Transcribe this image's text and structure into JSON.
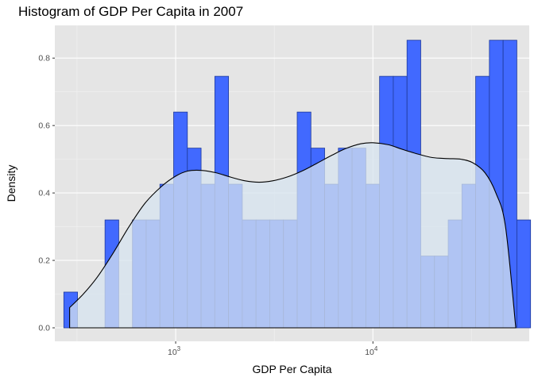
{
  "chart_data": {
    "type": "histogram",
    "title": "Histogram of GDP Per Capita in 2007",
    "xlabel": "GDP Per Capita",
    "ylabel": "Density",
    "x_scale": "log10",
    "xlim": [
      244,
      62000
    ],
    "ylim": [
      -0.04,
      0.897
    ],
    "x_ticks": [
      {
        "value": 1000,
        "base": "10",
        "exp": "3"
      },
      {
        "value": 10000,
        "base": "10",
        "exp": "4"
      }
    ],
    "y_ticks": [
      {
        "value": 0.0,
        "label": "0.0"
      },
      {
        "value": 0.2,
        "label": "0.2"
      },
      {
        "value": 0.4,
        "label": "0.4"
      },
      {
        "value": 0.6,
        "label": "0.6"
      },
      {
        "value": 0.8,
        "label": "0.8"
      }
    ],
    "grid": true,
    "bin_start": 271,
    "bin_ratio": 1.1738,
    "density": [
      0.106,
      0.0,
      0.0,
      0.32,
      0.0,
      0.32,
      0.32,
      0.426,
      0.64,
      0.533,
      0.426,
      0.746,
      0.426,
      0.32,
      0.32,
      0.32,
      0.32,
      0.64,
      0.533,
      0.426,
      0.533,
      0.533,
      0.426,
      0.746,
      0.746,
      0.853,
      0.213,
      0.213,
      0.32,
      0.426,
      0.746,
      0.853,
      0.853,
      0.32
    ],
    "kde": {
      "x": [
        290,
        340,
        400,
        480,
        580,
        700,
        850,
        1000,
        1150,
        1350,
        1600,
        1900,
        2250,
        2650,
        3100,
        3700,
        4400,
        5200,
        6200,
        7300,
        8700,
        10000,
        12000,
        14000,
        17000,
        20000,
        24000,
        28000,
        32000,
        37000,
        42000,
        47000,
        53000
      ],
      "y": [
        0.06,
        0.1,
        0.15,
        0.22,
        0.3,
        0.37,
        0.42,
        0.45,
        0.465,
        0.467,
        0.46,
        0.447,
        0.436,
        0.432,
        0.436,
        0.448,
        0.466,
        0.488,
        0.512,
        0.532,
        0.546,
        0.549,
        0.543,
        0.53,
        0.515,
        0.505,
        0.502,
        0.5,
        0.49,
        0.46,
        0.4,
        0.3,
        0.0
      ]
    },
    "colors": {
      "panel": "#e5e5e5",
      "grid_major": "#ffffff",
      "bar_fill": "#4169ff",
      "bar_outline": "#1f3a99",
      "density_fill": "#d6e3ef",
      "density_line": "#000000"
    }
  }
}
